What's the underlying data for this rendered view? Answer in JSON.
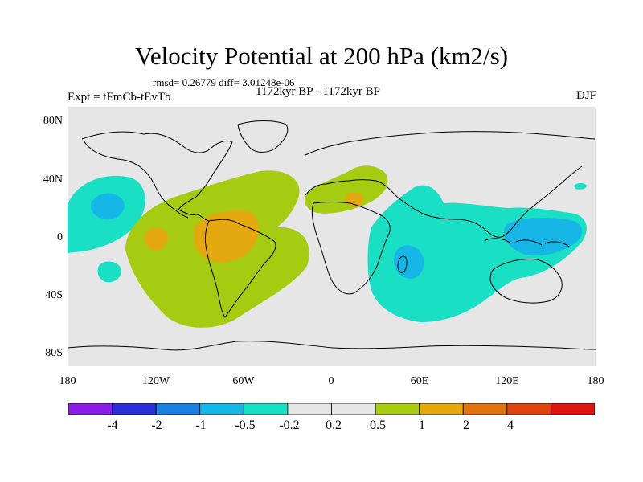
{
  "title": "Velocity Potential at 200 hPa (km2/s)",
  "stats_line": "rmsd= 0.26779 diff= 3.01248e-06",
  "experiment_label": "Expt = tFmCb-tEvTb",
  "period_label": "1172kyr BP - 1172kyr BP",
  "season_label": "DJF",
  "map": {
    "projection": "cylindrical equidistant",
    "lon_range": [
      -180,
      180
    ],
    "lat_range": [
      -90,
      90
    ],
    "y_ticks": [
      {
        "label": "80N",
        "lat": 80
      },
      {
        "label": "40N",
        "lat": 40
      },
      {
        "label": "0",
        "lat": 0
      },
      {
        "label": "40S",
        "lat": -40
      },
      {
        "label": "80S",
        "lat": -80
      }
    ],
    "x_ticks": [
      {
        "label": "180",
        "lon": -180
      },
      {
        "label": "120W",
        "lon": -120
      },
      {
        "label": "60W",
        "lon": -60
      },
      {
        "label": "0",
        "lon": 0
      },
      {
        "label": "60E",
        "lon": 60
      },
      {
        "label": "120E",
        "lon": 120
      },
      {
        "label": "180",
        "lon": 180
      }
    ],
    "regions": [
      {
        "name": "subtropical-north-pacific-positive",
        "level": "-0.5 to -0.2",
        "color": "#19e0c4"
      },
      {
        "name": "central-north-pacific-core",
        "level": "-1 to -0.5",
        "color": "#16b6e6"
      },
      {
        "name": "americas-atlantic-negative",
        "level": "0.2 to 0.5",
        "color": "#a6cc11"
      },
      {
        "name": "amazon-core",
        "level": "0.5 to 1",
        "color": "#e3a90e"
      },
      {
        "name": "mediterranean-africa-negative",
        "level": "0.2 to 0.5",
        "color": "#a6cc11"
      },
      {
        "name": "indian-ocean-west-pacific-positive",
        "level": "-0.5 to -0.2",
        "color": "#19e0c4"
      },
      {
        "name": "maritime-continent-core",
        "level": "-1 to -0.5",
        "color": "#16b6e6"
      }
    ]
  },
  "colorbar": {
    "colors": [
      "#8a1ee6",
      "#2a2fd8",
      "#1a7fe0",
      "#16b6e6",
      "#19e0c4",
      "#e6e6e6",
      "#e6e6e6",
      "#a6cc11",
      "#e3a90e",
      "#e0730e",
      "#e04510",
      "#e0140e"
    ],
    "labels": [
      "-4",
      "-2",
      "-1",
      "-0.5",
      "-0.2",
      "0.2",
      "0.5",
      "1",
      "2",
      "4"
    ]
  }
}
